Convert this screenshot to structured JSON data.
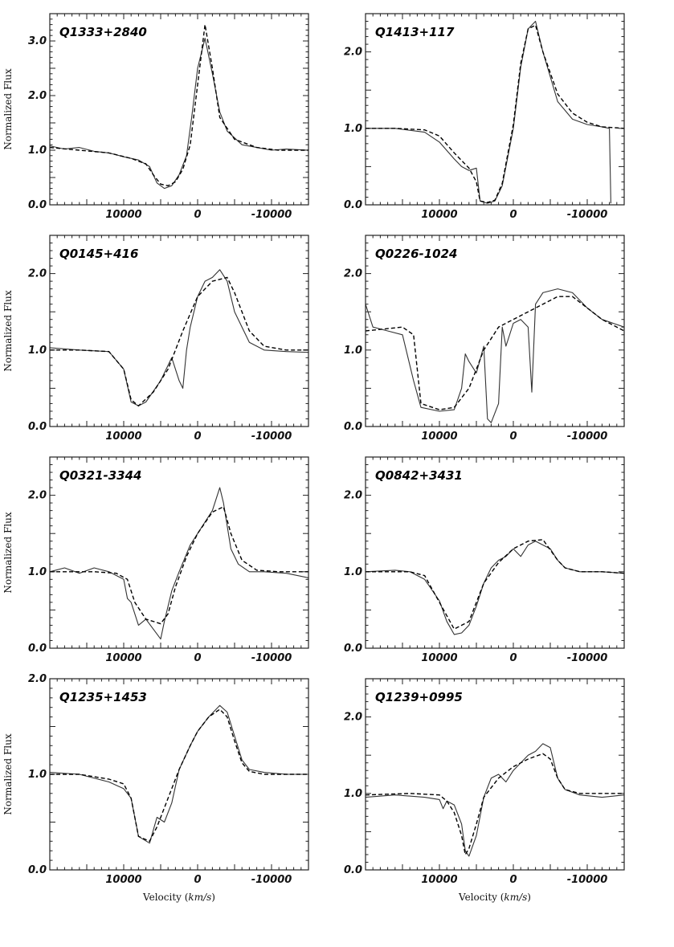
{
  "figure": {
    "ylabel": "Normalized Flux",
    "xlabel": "Velocity (km/s)"
  },
  "chart_data": [
    {
      "type": "line",
      "title": "Q1333+2840",
      "xlim": [
        20000,
        -15000
      ],
      "ylim": [
        0.0,
        3.5
      ],
      "yticks": [
        0.0,
        1.0,
        2.0,
        3.0
      ],
      "ytick_labels": [
        "0.0",
        "1.0",
        "2.0",
        "3.0"
      ],
      "xticks": [
        10000,
        0,
        -10000
      ],
      "xtick_labels": [
        "10000",
        "0",
        "-10000"
      ],
      "series": [
        {
          "style": "solid",
          "x": [
            20000,
            18000,
            16000,
            14000,
            12000,
            10000,
            8000,
            6500,
            5500,
            4500,
            3500,
            2500,
            1500,
            800,
            0,
            -1000,
            -2000,
            -3000,
            -4000,
            -6000,
            -8000,
            -10000,
            -12000,
            -15000
          ],
          "y": [
            1.08,
            1.02,
            1.05,
            0.98,
            0.95,
            0.88,
            0.82,
            0.7,
            0.4,
            0.3,
            0.35,
            0.55,
            0.9,
            1.6,
            2.5,
            3.05,
            2.4,
            1.7,
            1.35,
            1.1,
            1.05,
            1.0,
            1.02,
            1.0
          ]
        },
        {
          "style": "dashed",
          "x": [
            20000,
            16000,
            12000,
            9000,
            7000,
            6000,
            5000,
            4000,
            3000,
            2000,
            1000,
            0,
            -1000,
            -2000,
            -3000,
            -5000,
            -8000,
            -11000,
            -15000
          ],
          "y": [
            1.05,
            1.0,
            0.95,
            0.85,
            0.75,
            0.55,
            0.38,
            0.35,
            0.42,
            0.65,
            1.1,
            2.2,
            3.3,
            2.5,
            1.6,
            1.2,
            1.05,
            1.0,
            1.0
          ]
        }
      ]
    },
    {
      "type": "line",
      "title": "Q1413+117",
      "xlim": [
        20000,
        -15000
      ],
      "ylim": [
        0.0,
        2.5
      ],
      "yticks": [
        0.0,
        1.0,
        2.0
      ],
      "ytick_labels": [
        "0.0",
        "1.0",
        "2.0"
      ],
      "xticks": [
        10000,
        0,
        -10000
      ],
      "xtick_labels": [
        "10000",
        "0",
        "-10000"
      ],
      "series": [
        {
          "style": "solid",
          "x": [
            20000,
            16000,
            12000,
            10000,
            8000,
            7000,
            6000,
            5000,
            4500,
            3500,
            2500,
            1500,
            0,
            -1000,
            -2000,
            -3000,
            -4000,
            -6000,
            -8000,
            -10000,
            -12000,
            -13000,
            -13200
          ],
          "y": [
            1.0,
            1.0,
            0.95,
            0.82,
            0.6,
            0.5,
            0.45,
            0.48,
            0.05,
            0.02,
            0.05,
            0.25,
            1.0,
            1.8,
            2.3,
            2.4,
            2.0,
            1.35,
            1.12,
            1.05,
            1.02,
            1.0,
            0.02
          ]
        },
        {
          "style": "dashed",
          "x": [
            20000,
            16000,
            12000,
            10000,
            8000,
            6000,
            5000,
            4500,
            3500,
            2500,
            1500,
            0,
            -1000,
            -2000,
            -3000,
            -4000,
            -6000,
            -8000,
            -10000,
            -12000,
            -15000
          ],
          "y": [
            1.0,
            1.0,
            0.98,
            0.9,
            0.68,
            0.48,
            0.3,
            0.05,
            0.03,
            0.06,
            0.28,
            1.05,
            1.85,
            2.3,
            2.35,
            2.0,
            1.45,
            1.2,
            1.08,
            1.02,
            1.0
          ]
        }
      ]
    },
    {
      "type": "line",
      "title": "Q0145+416",
      "xlim": [
        20000,
        -15000
      ],
      "ylim": [
        0.0,
        2.5
      ],
      "yticks": [
        0.0,
        1.0,
        2.0
      ],
      "ytick_labels": [
        "0.0",
        "1.0",
        "2.0"
      ],
      "xticks": [
        10000,
        0,
        -10000
      ],
      "xtick_labels": [
        "10000",
        "0",
        "-10000"
      ],
      "series": [
        {
          "style": "solid",
          "x": [
            20000,
            16000,
            12000,
            10000,
            9000,
            8000,
            7000,
            5000,
            3500,
            2500,
            2000,
            1500,
            1000,
            0,
            -1000,
            -2000,
            -3000,
            -4000,
            -5000,
            -7000,
            -9000,
            -12000,
            -15000
          ],
          "y": [
            1.03,
            1.0,
            0.98,
            0.75,
            0.32,
            0.27,
            0.32,
            0.6,
            0.9,
            0.6,
            0.5,
            1.0,
            1.3,
            1.7,
            1.9,
            1.95,
            2.05,
            1.9,
            1.5,
            1.1,
            1.0,
            0.98,
            0.97
          ]
        },
        {
          "style": "dashed",
          "x": [
            20000,
            16000,
            12000,
            10000,
            9000,
            8000,
            6000,
            4000,
            2000,
            0,
            -2000,
            -4000,
            -5000,
            -7000,
            -9000,
            -12000,
            -15000
          ],
          "y": [
            1.0,
            1.0,
            0.98,
            0.75,
            0.35,
            0.27,
            0.45,
            0.75,
            1.25,
            1.7,
            1.9,
            1.95,
            1.75,
            1.25,
            1.05,
            1.0,
            1.0
          ]
        }
      ]
    },
    {
      "type": "line",
      "title": "Q0226-1024",
      "xlim": [
        20000,
        -15000
      ],
      "ylim": [
        0.0,
        2.5
      ],
      "yticks": [
        0.0,
        1.0,
        2.0
      ],
      "ytick_labels": [
        "0.0",
        "1.0",
        "2.0"
      ],
      "xticks": [
        10000,
        0,
        -10000
      ],
      "xtick_labels": [
        "10000",
        "0",
        "-10000"
      ],
      "series": [
        {
          "style": "solid",
          "x": [
            20000,
            19000,
            17000,
            15000,
            13500,
            12500,
            10000,
            8000,
            7000,
            6500,
            6000,
            5000,
            4000,
            3500,
            3000,
            2000,
            1500,
            1000,
            0,
            -1000,
            -2000,
            -2500,
            -3000,
            -4000,
            -6000,
            -8000,
            -10000,
            -12000,
            -15000
          ],
          "y": [
            1.6,
            1.3,
            1.25,
            1.2,
            0.6,
            0.25,
            0.2,
            0.22,
            0.5,
            0.95,
            0.85,
            0.7,
            1.05,
            0.1,
            0.05,
            0.3,
            1.3,
            1.05,
            1.35,
            1.4,
            1.3,
            0.45,
            1.6,
            1.75,
            1.8,
            1.75,
            1.55,
            1.4,
            1.3
          ]
        },
        {
          "style": "dashed",
          "x": [
            20000,
            15000,
            13500,
            12500,
            10000,
            8000,
            6000,
            4000,
            2000,
            0,
            -2000,
            -4000,
            -6000,
            -8000,
            -10000,
            -12000,
            -15000
          ],
          "y": [
            1.25,
            1.3,
            1.2,
            0.3,
            0.22,
            0.25,
            0.5,
            1.0,
            1.3,
            1.4,
            1.5,
            1.6,
            1.7,
            1.7,
            1.55,
            1.4,
            1.25
          ]
        }
      ]
    },
    {
      "type": "line",
      "title": "Q0321-3344",
      "xlim": [
        20000,
        -15000
      ],
      "ylim": [
        0.0,
        2.5
      ],
      "yticks": [
        0.0,
        1.0,
        2.0
      ],
      "ytick_labels": [
        "0.0",
        "1.0",
        "2.0"
      ],
      "xticks": [
        10000,
        0,
        -10000
      ],
      "xtick_labels": [
        "10000",
        "0",
        "-10000"
      ],
      "series": [
        {
          "style": "solid",
          "x": [
            20000,
            18000,
            16000,
            14000,
            12000,
            10000,
            9500,
            9000,
            8000,
            7000,
            6000,
            5000,
            4500,
            3500,
            2500,
            1000,
            0,
            -2000,
            -3000,
            -3500,
            -4500,
            -5500,
            -7000,
            -9000,
            -12000,
            -15000
          ],
          "y": [
            1.0,
            1.05,
            0.98,
            1.05,
            1.0,
            0.9,
            0.65,
            0.6,
            0.3,
            0.38,
            0.25,
            0.12,
            0.35,
            0.75,
            1.0,
            1.35,
            1.5,
            1.8,
            2.1,
            1.9,
            1.3,
            1.1,
            1.0,
            1.0,
            0.98,
            0.92
          ]
        },
        {
          "style": "dashed",
          "x": [
            20000,
            14000,
            11000,
            9500,
            8500,
            7000,
            5000,
            4000,
            3000,
            1500,
            0,
            -2000,
            -3500,
            -4500,
            -6000,
            -8000,
            -11000,
            -15000
          ],
          "y": [
            1.0,
            1.0,
            0.98,
            0.9,
            0.6,
            0.38,
            0.32,
            0.45,
            0.8,
            1.2,
            1.5,
            1.78,
            1.85,
            1.5,
            1.15,
            1.02,
            1.0,
            1.0
          ]
        }
      ]
    },
    {
      "type": "line",
      "title": "Q0842+3431",
      "xlim": [
        20000,
        -15000
      ],
      "ylim": [
        0.0,
        2.5
      ],
      "yticks": [
        0.0,
        1.0,
        2.0
      ],
      "ytick_labels": [
        "0.0",
        "1.0",
        "2.0"
      ],
      "xticks": [
        10000,
        0,
        -10000
      ],
      "xtick_labels": [
        "10000",
        "0",
        "-10000"
      ],
      "series": [
        {
          "style": "solid",
          "x": [
            20000,
            16000,
            14000,
            12000,
            10000,
            9000,
            8000,
            7000,
            6000,
            5000,
            4000,
            3000,
            2000,
            1000,
            0,
            -1000,
            -2000,
            -3000,
            -4000,
            -5000,
            -6000,
            -7000,
            -9000,
            -12000,
            -15000
          ],
          "y": [
            1.0,
            1.02,
            1.0,
            0.9,
            0.62,
            0.35,
            0.18,
            0.2,
            0.3,
            0.55,
            0.85,
            1.05,
            1.15,
            1.2,
            1.3,
            1.2,
            1.35,
            1.4,
            1.35,
            1.3,
            1.15,
            1.05,
            1.0,
            1.0,
            0.98
          ]
        },
        {
          "style": "dashed",
          "x": [
            20000,
            14000,
            12000,
            10000,
            8000,
            6000,
            4000,
            2000,
            0,
            -2000,
            -4000,
            -6000,
            -7000,
            -9000,
            -12000,
            -15000
          ],
          "y": [
            1.0,
            1.0,
            0.95,
            0.6,
            0.25,
            0.35,
            0.85,
            1.12,
            1.3,
            1.4,
            1.42,
            1.15,
            1.05,
            1.0,
            1.0,
            0.98
          ]
        }
      ]
    },
    {
      "type": "line",
      "title": "Q1235+1453",
      "xlim": [
        20000,
        -15000
      ],
      "ylim": [
        0.0,
        2.0
      ],
      "yticks": [
        0.0,
        1.0,
        2.0
      ],
      "ytick_labels": [
        "0.0",
        "1.0",
        "2.0"
      ],
      "xticks": [
        10000,
        0,
        -10000
      ],
      "xtick_labels": [
        "10000",
        "0",
        "-10000"
      ],
      "series": [
        {
          "style": "solid",
          "x": [
            20000,
            16000,
            12000,
            10000,
            9000,
            8000,
            6500,
            5500,
            4500,
            3500,
            2500,
            1000,
            0,
            -1500,
            -3000,
            -4000,
            -5000,
            -6000,
            -7000,
            -9000,
            -12000,
            -15000
          ],
          "y": [
            1.02,
            1.0,
            0.92,
            0.85,
            0.75,
            0.35,
            0.28,
            0.55,
            0.5,
            0.7,
            1.05,
            1.3,
            1.45,
            1.6,
            1.72,
            1.65,
            1.4,
            1.15,
            1.05,
            1.02,
            1.0,
            1.0
          ]
        },
        {
          "style": "dashed",
          "x": [
            20000,
            16000,
            12000,
            10000,
            9000,
            8000,
            6500,
            5500,
            4000,
            2500,
            1000,
            0,
            -1500,
            -3000,
            -4000,
            -5000,
            -6000,
            -7000,
            -9000,
            -12000,
            -15000
          ],
          "y": [
            1.0,
            1.0,
            0.95,
            0.9,
            0.75,
            0.35,
            0.3,
            0.45,
            0.75,
            1.05,
            1.3,
            1.45,
            1.6,
            1.68,
            1.6,
            1.35,
            1.12,
            1.03,
            1.0,
            1.0,
            1.0
          ]
        }
      ]
    },
    {
      "type": "line",
      "title": "Q1239+0995",
      "xlim": [
        20000,
        -15000
      ],
      "ylim": [
        0.0,
        2.5
      ],
      "yticks": [
        0.0,
        1.0,
        2.0
      ],
      "ytick_labels": [
        "0.0",
        "1.0",
        "2.0"
      ],
      "xticks": [
        10000,
        0,
        -10000
      ],
      "xtick_labels": [
        "10000",
        "0",
        "-10000"
      ],
      "series": [
        {
          "style": "solid",
          "x": [
            20000,
            16000,
            12000,
            10000,
            9500,
            9000,
            8000,
            7000,
            6500,
            6000,
            5000,
            4000,
            3000,
            2000,
            1000,
            0,
            -1000,
            -2000,
            -3000,
            -4000,
            -5000,
            -6000,
            -7000,
            -9000,
            -12000,
            -15000
          ],
          "y": [
            0.95,
            0.98,
            0.95,
            0.92,
            0.8,
            0.9,
            0.85,
            0.6,
            0.25,
            0.18,
            0.45,
            0.95,
            1.2,
            1.25,
            1.15,
            1.3,
            1.4,
            1.5,
            1.55,
            1.65,
            1.6,
            1.2,
            1.05,
            0.98,
            0.95,
            0.98
          ]
        },
        {
          "style": "dashed",
          "x": [
            20000,
            14000,
            10000,
            9000,
            8000,
            7000,
            6500,
            6000,
            5000,
            4000,
            2000,
            0,
            -2000,
            -4000,
            -5000,
            -6000,
            -7000,
            -9000,
            -12000,
            -15000
          ],
          "y": [
            0.98,
            1.0,
            0.98,
            0.9,
            0.75,
            0.45,
            0.2,
            0.28,
            0.6,
            0.95,
            1.2,
            1.35,
            1.45,
            1.52,
            1.45,
            1.2,
            1.05,
            1.0,
            1.0,
            1.0
          ]
        }
      ]
    }
  ]
}
